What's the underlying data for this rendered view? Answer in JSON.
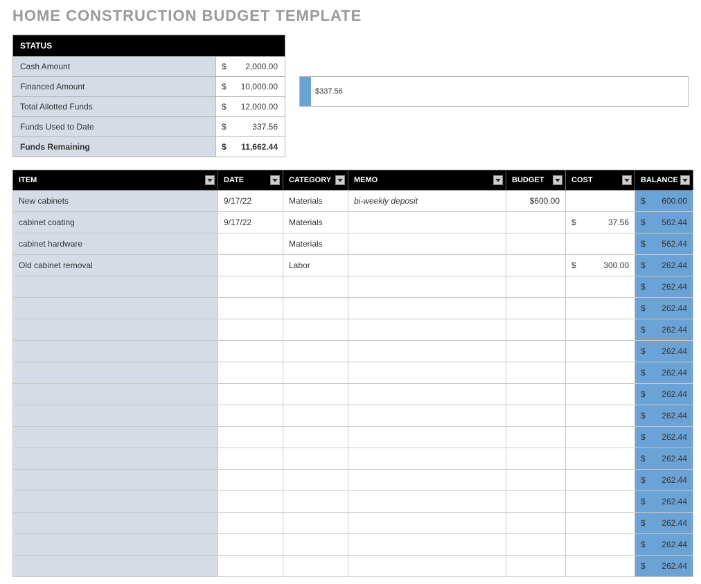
{
  "title": "HOME CONSTRUCTION BUDGET TEMPLATE",
  "status": {
    "header": "STATUS",
    "rows": [
      {
        "label": "Cash Amount",
        "currency": "$",
        "value": "2,000.00",
        "bold": false
      },
      {
        "label": "Financed Amount",
        "currency": "$",
        "value": "10,000.00",
        "bold": false
      },
      {
        "label": "Total Allotted Funds",
        "currency": "$",
        "value": "12,000.00",
        "bold": false
      },
      {
        "label": "Funds Used to Date",
        "currency": "$",
        "value": "337.56",
        "bold": false
      },
      {
        "label": "Funds Remaining",
        "currency": "$",
        "value": "11,662.44",
        "bold": true
      }
    ]
  },
  "progress": {
    "label": "$337.56",
    "percent": 2.81,
    "bar_color": "#6ba3d6",
    "bg_color": "#ffffff",
    "border_color": "#b5b5b5"
  },
  "items": {
    "columns": [
      "ITEM",
      "DATE",
      "CATEGORY",
      "MEMO",
      "BUDGET",
      "COST",
      "BALANCE"
    ],
    "rows": [
      {
        "item": "New cabinets",
        "date": "9/17/22",
        "category": "Materials",
        "memo": "bi-weekly deposit",
        "budget": "$600.00",
        "cost_cur": "",
        "cost": "",
        "bal_cur": "$",
        "balance": "600.00"
      },
      {
        "item": "cabinet coating",
        "date": "9/17/22",
        "category": "Materials",
        "memo": "",
        "budget": "",
        "cost_cur": "$",
        "cost": "37.56",
        "bal_cur": "$",
        "balance": "562.44"
      },
      {
        "item": "cabinet hardware",
        "date": "",
        "category": "Materials",
        "memo": "",
        "budget": "",
        "cost_cur": "",
        "cost": "",
        "bal_cur": "$",
        "balance": "562.44"
      },
      {
        "item": "Old cabinet removal",
        "date": "",
        "category": "Labor",
        "memo": "",
        "budget": "",
        "cost_cur": "$",
        "cost": "300.00",
        "bal_cur": "$",
        "balance": "262.44"
      },
      {
        "item": "",
        "date": "",
        "category": "",
        "memo": "",
        "budget": "",
        "cost_cur": "",
        "cost": "",
        "bal_cur": "$",
        "balance": "262.44"
      },
      {
        "item": "",
        "date": "",
        "category": "",
        "memo": "",
        "budget": "",
        "cost_cur": "",
        "cost": "",
        "bal_cur": "$",
        "balance": "262.44"
      },
      {
        "item": "",
        "date": "",
        "category": "",
        "memo": "",
        "budget": "",
        "cost_cur": "",
        "cost": "",
        "bal_cur": "$",
        "balance": "262.44"
      },
      {
        "item": "",
        "date": "",
        "category": "",
        "memo": "",
        "budget": "",
        "cost_cur": "",
        "cost": "",
        "bal_cur": "$",
        "balance": "262.44"
      },
      {
        "item": "",
        "date": "",
        "category": "",
        "memo": "",
        "budget": "",
        "cost_cur": "",
        "cost": "",
        "bal_cur": "$",
        "balance": "262.44"
      },
      {
        "item": "",
        "date": "",
        "category": "",
        "memo": "",
        "budget": "",
        "cost_cur": "",
        "cost": "",
        "bal_cur": "$",
        "balance": "262.44"
      },
      {
        "item": "",
        "date": "",
        "category": "",
        "memo": "",
        "budget": "",
        "cost_cur": "",
        "cost": "",
        "bal_cur": "$",
        "balance": "262.44"
      },
      {
        "item": "",
        "date": "",
        "category": "",
        "memo": "",
        "budget": "",
        "cost_cur": "",
        "cost": "",
        "bal_cur": "$",
        "balance": "262.44"
      },
      {
        "item": "",
        "date": "",
        "category": "",
        "memo": "",
        "budget": "",
        "cost_cur": "",
        "cost": "",
        "bal_cur": "$",
        "balance": "262.44"
      },
      {
        "item": "",
        "date": "",
        "category": "",
        "memo": "",
        "budget": "",
        "cost_cur": "",
        "cost": "",
        "bal_cur": "$",
        "balance": "262.44"
      },
      {
        "item": "",
        "date": "",
        "category": "",
        "memo": "",
        "budget": "",
        "cost_cur": "",
        "cost": "",
        "bal_cur": "$",
        "balance": "262.44"
      },
      {
        "item": "",
        "date": "",
        "category": "",
        "memo": "",
        "budget": "",
        "cost_cur": "",
        "cost": "",
        "bal_cur": "$",
        "balance": "262.44"
      },
      {
        "item": "",
        "date": "",
        "category": "",
        "memo": "",
        "budget": "",
        "cost_cur": "",
        "cost": "",
        "bal_cur": "$",
        "balance": "262.44"
      },
      {
        "item": "",
        "date": "",
        "category": "",
        "memo": "",
        "budget": "",
        "cost_cur": "",
        "cost": "",
        "bal_cur": "$",
        "balance": "262.44"
      }
    ]
  },
  "colors": {
    "header_bg": "#000000",
    "header_fg": "#ffffff",
    "label_bg": "#d6dce6",
    "balance_bg": "#6ba3d6",
    "border": "#c8c8c8",
    "title": "#9a9a9a"
  }
}
